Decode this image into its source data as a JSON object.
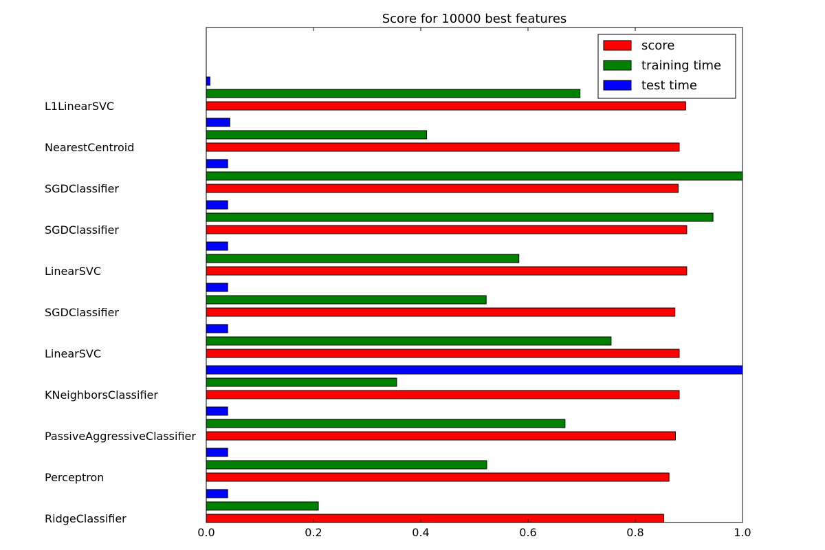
{
  "chart_data": {
    "type": "bar",
    "orientation": "horizontal",
    "title": "Score for 10000 best features",
    "xlabel": "",
    "ylabel": "",
    "xlim": [
      0,
      1.0
    ],
    "xticks": [
      "0.0",
      "0.2",
      "0.4",
      "0.6",
      "0.8",
      "1.0"
    ],
    "grid": false,
    "legend_position": "top-right",
    "categories": [
      "L1LinearSVC",
      "NearestCentroid",
      "SGDClassifier",
      "SGDClassifier",
      "LinearSVC",
      "SGDClassifier",
      "LinearSVC",
      "KNeighborsClassifier",
      "PassiveAggressiveClassifier",
      "Perceptron",
      "RidgeClassifier"
    ],
    "series": [
      {
        "name": "score",
        "color": "#ff0000",
        "values": [
          0.894,
          0.882,
          0.88,
          0.896,
          0.896,
          0.874,
          0.882,
          0.882,
          0.875,
          0.863,
          0.853
        ]
      },
      {
        "name": "training time",
        "color": "#008000",
        "values": [
          0.697,
          0.411,
          1.0,
          0.945,
          0.583,
          0.522,
          0.755,
          0.355,
          0.669,
          0.523,
          0.209
        ]
      },
      {
        "name": "test time",
        "color": "#0000ff",
        "values": [
          0.007,
          0.044,
          0.04,
          0.04,
          0.04,
          0.04,
          0.04,
          1.0,
          0.04,
          0.04,
          0.04
        ]
      }
    ]
  }
}
